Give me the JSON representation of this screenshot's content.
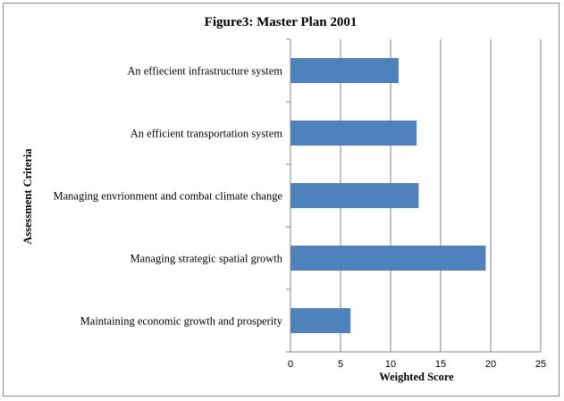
{
  "chart_data": {
    "type": "bar",
    "orientation": "horizontal",
    "title": "Figure3:  Master Plan 2001",
    "xlabel": "Weighted Score",
    "ylabel": "Assessment Criteria",
    "categories": [
      "An effiecient infrastructure system",
      "An efficient transportation system",
      "Managing envrionment and combat climate change",
      "Managing strategic spatial growth",
      "Maintaining economic growth and prosperity"
    ],
    "values": [
      10.8,
      12.6,
      12.8,
      19.5,
      6.0
    ],
    "xlim": [
      0,
      25
    ],
    "xticks": [
      "0",
      "5",
      "10",
      "15",
      "20",
      "25"
    ],
    "grid": "vertical major gridlines",
    "legend": "none",
    "bar_color": "#4F81BD",
    "grid_color": "#868686"
  }
}
